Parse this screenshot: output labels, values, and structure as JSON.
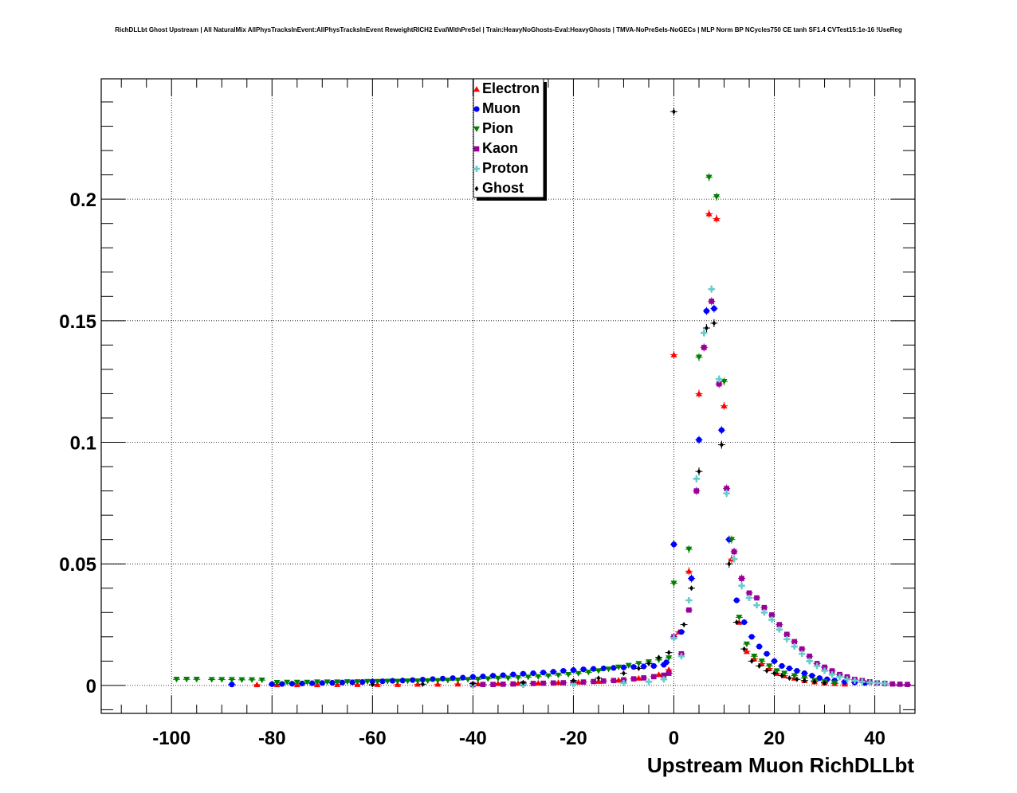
{
  "title": "RichDLLbt Ghost Upstream | All NaturalMix AllPhysTracksInEvent:AllPhysTracksInEvent ReweightRICH2 EvalWithPreSel | Train:HeavyNoGhosts-Eval:HeavyGhosts | TMVA-NoPreSels-NoGECs | MLP Norm BP NCycles750 CE tanh SF1.4 CVTest15:1e-16 !UseReg",
  "chart_data": {
    "type": "scatter",
    "title": "RichDLLbt Ghost Upstream | All NaturalMix AllPhysTracksInEvent:AllPhysTracksInEvent ReweightRICH2 EvalWithPreSel | Train:HeavyNoGhosts-Eval:HeavyGhosts | TMVA-NoPreSels-NoGECs | MLP Norm BP NCycles750 CE tanh SF1.4 CVTest15:1e-16 !UseReg",
    "xlabel": "Upstream Muon RichDLLbt",
    "ylabel": "",
    "xlim": [
      -114,
      48
    ],
    "ylim": [
      -0.0115,
      0.2495
    ],
    "xticks": [
      -100,
      -80,
      -60,
      -40,
      -20,
      0,
      20,
      40
    ],
    "xtick_labels": [
      "-100",
      "-80",
      "-60",
      "-40",
      "-20",
      "0",
      "20",
      "40"
    ],
    "yticks": [
      0,
      0.05,
      0.1,
      0.15,
      0.2
    ],
    "ytick_labels": [
      "0",
      "0.05",
      "0.1",
      "0.15",
      "0.2"
    ],
    "grid": true,
    "legend_position": "top-center",
    "series": [
      {
        "name": "Electron",
        "color": "#ff0000",
        "marker": "triangle-up",
        "points": [
          [
            -83,
            0.0003
          ],
          [
            -79,
            0.0003
          ],
          [
            -75,
            0.0003
          ],
          [
            -71,
            0.0003
          ],
          [
            -67,
            0.0004
          ],
          [
            -63,
            0.0004
          ],
          [
            -59,
            0.0004
          ],
          [
            -55,
            0.0004
          ],
          [
            -51,
            0.0005
          ],
          [
            -47,
            0.0005
          ],
          [
            -43,
            0.0006
          ],
          [
            -39,
            0.0007
          ],
          [
            -35,
            0.0008
          ],
          [
            -31,
            0.0009
          ],
          [
            -27,
            0.001
          ],
          [
            -23,
            0.0012
          ],
          [
            -19,
            0.0014
          ],
          [
            -15,
            0.0017
          ],
          [
            -11,
            0.0022
          ],
          [
            -7,
            0.003
          ],
          [
            -3,
            0.0045
          ],
          [
            -1,
            0.0065
          ],
          [
            0,
            0.136
          ],
          [
            1,
            0.022
          ],
          [
            3,
            0.047
          ],
          [
            5,
            0.12
          ],
          [
            7,
            0.194
          ],
          [
            8.5,
            0.192
          ],
          [
            10,
            0.115
          ],
          [
            11.5,
            0.052
          ],
          [
            13,
            0.026
          ],
          [
            14.5,
            0.014
          ],
          [
            16,
            0.011
          ],
          [
            17.5,
            0.009
          ],
          [
            19,
            0.007
          ],
          [
            20.5,
            0.005
          ],
          [
            22,
            0.004
          ],
          [
            24,
            0.003
          ],
          [
            26,
            0.002
          ],
          [
            28,
            0.0015
          ],
          [
            30,
            0.001
          ],
          [
            32,
            0.0008
          ],
          [
            34,
            0.0006
          ]
        ]
      },
      {
        "name": "Muon",
        "color": "#0000ff",
        "marker": "circle",
        "points": [
          [
            -88,
            0.0004
          ],
          [
            -80,
            0.0005
          ],
          [
            -78,
            0.0006
          ],
          [
            -76,
            0.0007
          ],
          [
            -74,
            0.0008
          ],
          [
            -72,
            0.0009
          ],
          [
            -70,
            0.001
          ],
          [
            -68,
            0.0011
          ],
          [
            -66,
            0.0012
          ],
          [
            -64,
            0.0013
          ],
          [
            -62,
            0.0014
          ],
          [
            -60,
            0.0016
          ],
          [
            -58,
            0.0017
          ],
          [
            -56,
            0.0019
          ],
          [
            -54,
            0.002
          ],
          [
            -52,
            0.0022
          ],
          [
            -50,
            0.0024
          ],
          [
            -48,
            0.0026
          ],
          [
            -46,
            0.0028
          ],
          [
            -44,
            0.003
          ],
          [
            -42,
            0.0032
          ],
          [
            -40,
            0.0035
          ],
          [
            -38,
            0.0037
          ],
          [
            -36,
            0.004
          ],
          [
            -34,
            0.0042
          ],
          [
            -32,
            0.0045
          ],
          [
            -30,
            0.0048
          ],
          [
            -28,
            0.005
          ],
          [
            -26,
            0.0053
          ],
          [
            -24,
            0.0056
          ],
          [
            -22,
            0.006
          ],
          [
            -20,
            0.0063
          ],
          [
            -18,
            0.0066
          ],
          [
            -16,
            0.0068
          ],
          [
            -14,
            0.007
          ],
          [
            -12,
            0.0072
          ],
          [
            -10,
            0.0074
          ],
          [
            -8,
            0.0076
          ],
          [
            -6,
            0.0078
          ],
          [
            -4,
            0.008
          ],
          [
            -2,
            0.0085
          ],
          [
            -1.5,
            0.0095
          ],
          [
            0,
            0.058
          ],
          [
            1.5,
            0.022
          ],
          [
            3.5,
            0.044
          ],
          [
            5,
            0.101
          ],
          [
            6.5,
            0.154
          ],
          [
            8,
            0.155
          ],
          [
            9.5,
            0.105
          ],
          [
            11,
            0.06
          ],
          [
            12.5,
            0.035
          ],
          [
            14,
            0.026
          ],
          [
            15.5,
            0.02
          ],
          [
            17,
            0.016
          ],
          [
            18.5,
            0.013
          ],
          [
            20,
            0.01
          ],
          [
            21.5,
            0.008
          ],
          [
            23,
            0.007
          ],
          [
            24.5,
            0.006
          ],
          [
            26,
            0.005
          ],
          [
            27.5,
            0.004
          ],
          [
            29,
            0.003
          ],
          [
            30.5,
            0.0025
          ],
          [
            32,
            0.002
          ],
          [
            34,
            0.0015
          ],
          [
            36,
            0.0012
          ],
          [
            38,
            0.001
          ]
        ]
      },
      {
        "name": "Pion",
        "color": "#008000",
        "marker": "triangle-down",
        "points": [
          [
            -99,
            0.0025
          ],
          [
            -97,
            0.0025
          ],
          [
            -95,
            0.0025
          ],
          [
            -92,
            0.0024
          ],
          [
            -90,
            0.0024
          ],
          [
            -88,
            0.0024
          ],
          [
            -86,
            0.0023
          ],
          [
            -84,
            0.0023
          ],
          [
            -82,
            0.0022
          ],
          [
            -79,
            0.0012
          ],
          [
            -77,
            0.0013
          ],
          [
            -75,
            0.0013
          ],
          [
            -73,
            0.0013
          ],
          [
            -71,
            0.0014
          ],
          [
            -69,
            0.0014
          ],
          [
            -67,
            0.0014
          ],
          [
            -65,
            0.0015
          ],
          [
            -63,
            0.0015
          ],
          [
            -61,
            0.0016
          ],
          [
            -59,
            0.0016
          ],
          [
            -57,
            0.0017
          ],
          [
            -55,
            0.0017
          ],
          [
            -53,
            0.0018
          ],
          [
            -51,
            0.0018
          ],
          [
            -49,
            0.0019
          ],
          [
            -47,
            0.002
          ],
          [
            -45,
            0.0021
          ],
          [
            -43,
            0.0022
          ],
          [
            -41,
            0.0024
          ],
          [
            -39,
            0.0025
          ],
          [
            -37,
            0.0027
          ],
          [
            -35,
            0.0029
          ],
          [
            -33,
            0.003
          ],
          [
            -31,
            0.0032
          ],
          [
            -29,
            0.0034
          ],
          [
            -27,
            0.0036
          ],
          [
            -25,
            0.0039
          ],
          [
            -23,
            0.0042
          ],
          [
            -21,
            0.0045
          ],
          [
            -19,
            0.0049
          ],
          [
            -17,
            0.0054
          ],
          [
            -15,
            0.006
          ],
          [
            -13,
            0.0067
          ],
          [
            -11,
            0.0075
          ],
          [
            -9,
            0.0082
          ],
          [
            -7,
            0.009
          ],
          [
            -5,
            0.0097
          ],
          [
            -3,
            0.0105
          ],
          [
            -1,
            0.0113
          ],
          [
            0,
            0.042
          ],
          [
            3,
            0.056
          ],
          [
            5,
            0.135
          ],
          [
            7,
            0.209
          ],
          [
            8.5,
            0.201
          ],
          [
            10,
            0.125
          ],
          [
            11.5,
            0.06
          ],
          [
            13,
            0.028
          ],
          [
            14.5,
            0.017
          ],
          [
            16,
            0.012
          ],
          [
            17.5,
            0.01
          ],
          [
            19,
            0.008
          ],
          [
            20.5,
            0.006
          ],
          [
            22,
            0.005
          ],
          [
            24,
            0.004
          ],
          [
            26,
            0.003
          ],
          [
            28,
            0.002
          ],
          [
            30,
            0.0015
          ],
          [
            32,
            0.001
          ]
        ]
      },
      {
        "name": "Kaon",
        "color": "#990099",
        "marker": "square",
        "points": [
          [
            -40,
            0.0003
          ],
          [
            -38,
            0.0004
          ],
          [
            -36,
            0.0004
          ],
          [
            -34,
            0.0005
          ],
          [
            -32,
            0.0006
          ],
          [
            -30,
            0.0007
          ],
          [
            -28,
            0.0008
          ],
          [
            -26,
            0.0009
          ],
          [
            -24,
            0.001
          ],
          [
            -22,
            0.0011
          ],
          [
            -20,
            0.0012
          ],
          [
            -18,
            0.0014
          ],
          [
            -16,
            0.0016
          ],
          [
            -14,
            0.0018
          ],
          [
            -12,
            0.002
          ],
          [
            -10,
            0.0023
          ],
          [
            -8,
            0.0027
          ],
          [
            -6,
            0.0031
          ],
          [
            -4,
            0.0036
          ],
          [
            -2,
            0.0042
          ],
          [
            -1,
            0.005
          ],
          [
            0,
            0.02
          ],
          [
            1.5,
            0.013
          ],
          [
            3,
            0.031
          ],
          [
            4.5,
            0.08
          ],
          [
            6,
            0.139
          ],
          [
            7.5,
            0.158
          ],
          [
            9,
            0.124
          ],
          [
            10.5,
            0.081
          ],
          [
            12,
            0.055
          ],
          [
            13.5,
            0.044
          ],
          [
            15,
            0.038
          ],
          [
            16.5,
            0.036
          ],
          [
            18,
            0.032
          ],
          [
            19.5,
            0.029
          ],
          [
            21,
            0.025
          ],
          [
            22.5,
            0.021
          ],
          [
            24,
            0.018
          ],
          [
            25.5,
            0.015
          ],
          [
            27,
            0.012
          ],
          [
            28.5,
            0.009
          ],
          [
            30,
            0.0075
          ],
          [
            31.5,
            0.006
          ],
          [
            33,
            0.0045
          ],
          [
            34.5,
            0.0035
          ],
          [
            36,
            0.0025
          ],
          [
            37.5,
            0.002
          ],
          [
            39,
            0.0015
          ],
          [
            40.5,
            0.001
          ],
          [
            42,
            0.0008
          ],
          [
            43.5,
            0.0006
          ],
          [
            45,
            0.0005
          ],
          [
            46.5,
            0.0004
          ]
        ]
      },
      {
        "name": "Proton",
        "color": "#66cccc",
        "marker": "cross",
        "points": [
          [
            -40,
            0.0002
          ],
          [
            -30,
            0.0003
          ],
          [
            -20,
            0.0005
          ],
          [
            -10,
            0.001
          ],
          [
            -5,
            0.0015
          ],
          [
            -2,
            0.0025
          ],
          [
            0,
            0.0195
          ],
          [
            1.5,
            0.012
          ],
          [
            3,
            0.035
          ],
          [
            4.5,
            0.085
          ],
          [
            6,
            0.145
          ],
          [
            7.5,
            0.163
          ],
          [
            9,
            0.126
          ],
          [
            10.5,
            0.079
          ],
          [
            12,
            0.052
          ],
          [
            13.5,
            0.041
          ],
          [
            15,
            0.036
          ],
          [
            16.5,
            0.033
          ],
          [
            18,
            0.03
          ],
          [
            19.5,
            0.027
          ],
          [
            21,
            0.023
          ],
          [
            22.5,
            0.019
          ],
          [
            24,
            0.016
          ],
          [
            25.5,
            0.013
          ],
          [
            27,
            0.01
          ],
          [
            28.5,
            0.008
          ],
          [
            30,
            0.006
          ],
          [
            31.5,
            0.0045
          ],
          [
            33,
            0.0035
          ],
          [
            34.5,
            0.0025
          ],
          [
            36,
            0.002
          ],
          [
            37.5,
            0.0015
          ],
          [
            39,
            0.0012
          ],
          [
            40.5,
            0.001
          ],
          [
            42,
            0.0008
          ]
        ]
      },
      {
        "name": "Ghost",
        "color": "#000000",
        "marker": "diamond",
        "points": [
          [
            -60,
            0.0003
          ],
          [
            -50,
            0.0005
          ],
          [
            -40,
            0.0008
          ],
          [
            -30,
            0.0012
          ],
          [
            -20,
            0.002
          ],
          [
            -15,
            0.003
          ],
          [
            -10,
            0.005
          ],
          [
            -7,
            0.007
          ],
          [
            -5,
            0.009
          ],
          [
            -3,
            0.0115
          ],
          [
            -1,
            0.0135
          ],
          [
            0,
            0.236
          ],
          [
            2,
            0.025
          ],
          [
            3.5,
            0.04
          ],
          [
            5,
            0.088
          ],
          [
            6.5,
            0.147
          ],
          [
            8,
            0.149
          ],
          [
            9.5,
            0.099
          ],
          [
            11,
            0.05
          ],
          [
            12.5,
            0.026
          ],
          [
            14,
            0.015
          ],
          [
            15.5,
            0.01
          ],
          [
            17,
            0.008
          ],
          [
            18.5,
            0.006
          ],
          [
            20,
            0.005
          ],
          [
            21.5,
            0.004
          ],
          [
            23,
            0.003
          ],
          [
            24.5,
            0.0025
          ],
          [
            26,
            0.002
          ],
          [
            28,
            0.0015
          ],
          [
            30,
            0.001
          ]
        ]
      }
    ]
  }
}
